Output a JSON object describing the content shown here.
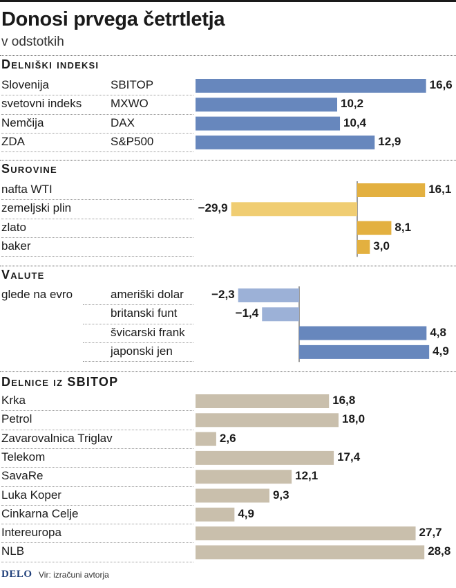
{
  "title": "Donosi prvega četrtletja",
  "subtitle": "v odstotkih",
  "footer": {
    "logo": "DELO",
    "source": "Vir: izračuni avtorja"
  },
  "colors": {
    "index_bar": "#6787bd",
    "commodity_pos": "#e3b040",
    "commodity_neg": "#f0cd72",
    "currency_pos": "#6787bd",
    "currency_neg": "#9cb1d7",
    "stock_bar": "#c9bfac"
  },
  "chart_data": [
    {
      "type": "bar",
      "orientation": "horizontal",
      "title": "Delniški indeksi",
      "categories": [
        "Slovenija",
        "svetovni indeks",
        "Nemčija",
        "ZDA"
      ],
      "codes": [
        "SBITOP",
        "MXWO",
        "DAX",
        "S&P500"
      ],
      "values": [
        16.6,
        10.2,
        10.4,
        12.9
      ],
      "value_labels": [
        "16,6",
        "10,2",
        "10,4",
        "12,9"
      ]
    },
    {
      "type": "bar",
      "orientation": "horizontal",
      "title": "Surovine",
      "categories": [
        "nafta WTI",
        "zemeljski plin",
        "zlato",
        "baker"
      ],
      "values": [
        16.1,
        -29.9,
        8.1,
        3.0
      ],
      "value_labels": [
        "16,1",
        "−29,9",
        "8,1",
        "3,0"
      ]
    },
    {
      "type": "bar",
      "orientation": "horizontal",
      "title": "Valute",
      "group_label": "glede na evro",
      "categories": [
        "ameriški dolar",
        "britanski funt",
        "švicarski frank",
        "japonski jen"
      ],
      "values": [
        -2.3,
        -1.4,
        4.8,
        4.9
      ],
      "value_labels": [
        "−2,3",
        "−1,4",
        "4,8",
        "4,9"
      ]
    },
    {
      "type": "bar",
      "orientation": "horizontal",
      "title": "Delnice iz SBITOP",
      "categories": [
        "Krka",
        "Petrol",
        "Zavarovalnica Triglav",
        "Telekom",
        "SavaRe",
        "Luka Koper",
        "Cinkarna Celje",
        "Intereuropa",
        "NLB"
      ],
      "values": [
        16.8,
        18.0,
        2.6,
        17.4,
        12.1,
        9.3,
        4.9,
        27.7,
        28.8
      ],
      "value_labels": [
        "16,8",
        "18,0",
        "2,6",
        "17,4",
        "12,1",
        "9,3",
        "4,9",
        "27,7",
        "28,8"
      ]
    }
  ]
}
